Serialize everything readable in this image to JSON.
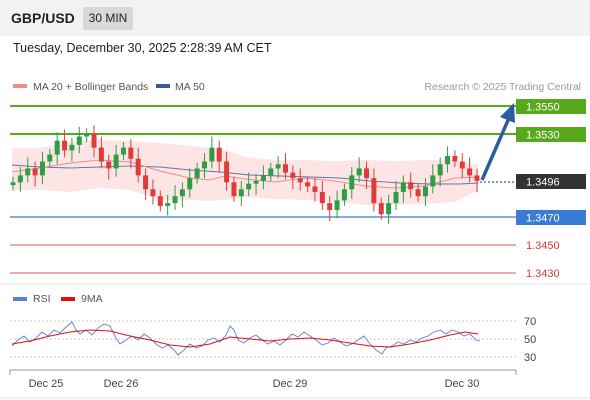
{
  "header": {
    "pair": "GBP/USD",
    "timeframe": "30 MIN",
    "timestamp": "Tuesday, December 30, 2025 2:28:39 AM CET"
  },
  "legend": {
    "ma20_label": "MA 20 + Bollinger Bands",
    "ma50_label": "MA 50",
    "ma20_color": "#f08c8c",
    "ma50_color": "#3c5a96",
    "credit": "Research © 2025 Trading Central"
  },
  "levels": [
    {
      "value": "1.3550",
      "kind": "resistance",
      "color": "#58a81e"
    },
    {
      "value": "1.3530",
      "kind": "resistance",
      "color": "#58a81e"
    },
    {
      "value": "1.3496",
      "kind": "last",
      "color": "#333333"
    },
    {
      "value": "1.3470",
      "kind": "pivot",
      "color": "#3a7bd5"
    },
    {
      "value": "1.3450",
      "kind": "support",
      "color": "#e05555"
    },
    {
      "value": "1.3430",
      "kind": "support",
      "color": "#e05555"
    }
  ],
  "rsi": {
    "rsi_label": "RSI",
    "ma_label": "9MA",
    "rsi_color": "#5a7fd8",
    "ma_color": "#dd1111",
    "ticks": [
      "70",
      "50",
      "30"
    ]
  },
  "xaxis": {
    "labels": [
      "Dec 25",
      "Dec 26",
      "Dec 29",
      "Dec 30"
    ]
  },
  "colors": {
    "up": "#2e9e44",
    "down": "#e03b3b",
    "band_fill": "#fde0e0",
    "arrow": "#2a5d9f"
  },
  "chart_data": {
    "type": "candlestick",
    "instrument": "GBP/USD",
    "timeframe": "30 MIN",
    "levels": [
      1.355,
      1.353,
      1.3496,
      1.347,
      1.345,
      1.343
    ],
    "last_price": 1.3496,
    "forecast_target": 1.355,
    "approx_close": [
      1.3495,
      1.35,
      1.3505,
      1.35,
      1.351,
      1.3515,
      1.3525,
      1.3518,
      1.3522,
      1.3528,
      1.353,
      1.352,
      1.351,
      1.3505,
      1.3515,
      1.352,
      1.3512,
      1.35,
      1.349,
      1.3485,
      1.3478,
      1.348,
      1.3485,
      1.349,
      1.3498,
      1.3505,
      1.351,
      1.352,
      1.351,
      1.3495,
      1.3485,
      1.349,
      1.3494,
      1.3496,
      1.35,
      1.3505,
      1.3508,
      1.3502,
      1.3498,
      1.3495,
      1.3492,
      1.3488,
      1.348,
      1.3475,
      1.3482,
      1.349,
      1.35,
      1.3505,
      1.3498,
      1.348,
      1.3472,
      1.348,
      1.3488,
      1.3495,
      1.349,
      1.3485,
      1.3492,
      1.35,
      1.3508,
      1.3514,
      1.351,
      1.3505,
      1.35,
      1.3496
    ],
    "ylim": [
      1.342,
      1.356
    ],
    "x_labels": [
      "Dec 25",
      "Dec 26",
      "Dec 29",
      "Dec 30"
    ],
    "rsi_ticks": [
      70,
      50,
      30
    ]
  }
}
